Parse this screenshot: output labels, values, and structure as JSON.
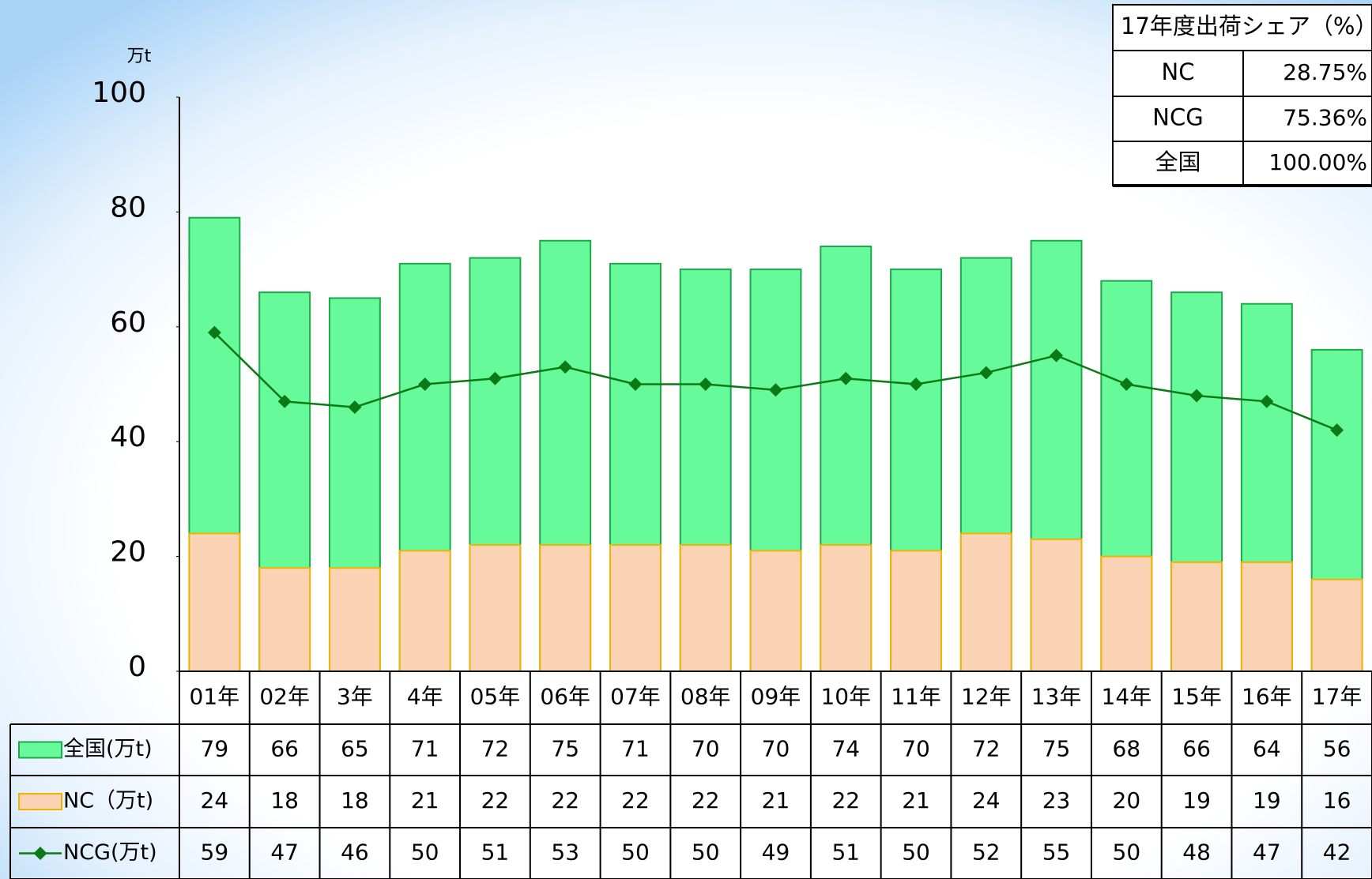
{
  "chart_data": {
    "type": "bar",
    "y_unit": "万t",
    "categories": [
      "01年",
      "02年",
      "3年",
      "4年",
      "05年",
      "06年",
      "07年",
      "08年",
      "09年",
      "10年",
      "11年",
      "12年",
      "13年",
      "14年",
      "15年",
      "16年",
      "17年"
    ],
    "series": [
      {
        "name": "全国(万t)",
        "type": "bar",
        "color": "#66fa9a",
        "edge": "#1fa84a",
        "values": [
          79,
          66,
          65,
          71,
          72,
          75,
          71,
          70,
          70,
          74,
          70,
          72,
          75,
          68,
          66,
          64,
          56
        ]
      },
      {
        "name": "NC（万t)",
        "type": "bar",
        "color": "#fad2b4",
        "edge": "#f0b400",
        "values": [
          24,
          18,
          18,
          21,
          22,
          22,
          22,
          22,
          21,
          22,
          21,
          24,
          23,
          20,
          19,
          19,
          16
        ]
      },
      {
        "name": "NCG(万t)",
        "type": "line",
        "color": "#0a7a14",
        "values": [
          59,
          47,
          46,
          50,
          51,
          53,
          50,
          50,
          49,
          51,
          50,
          52,
          55,
          50,
          48,
          47,
          42
        ]
      }
    ],
    "ylim": [
      0,
      100
    ],
    "yticks": [
      0,
      20,
      40,
      60,
      80,
      100
    ]
  },
  "share_table": {
    "title": "17年度出荷シェア（%）",
    "rows": [
      [
        "NC",
        "28.75%"
      ],
      [
        "NCG",
        "75.36%"
      ],
      [
        "全国",
        "100.00%"
      ]
    ]
  }
}
